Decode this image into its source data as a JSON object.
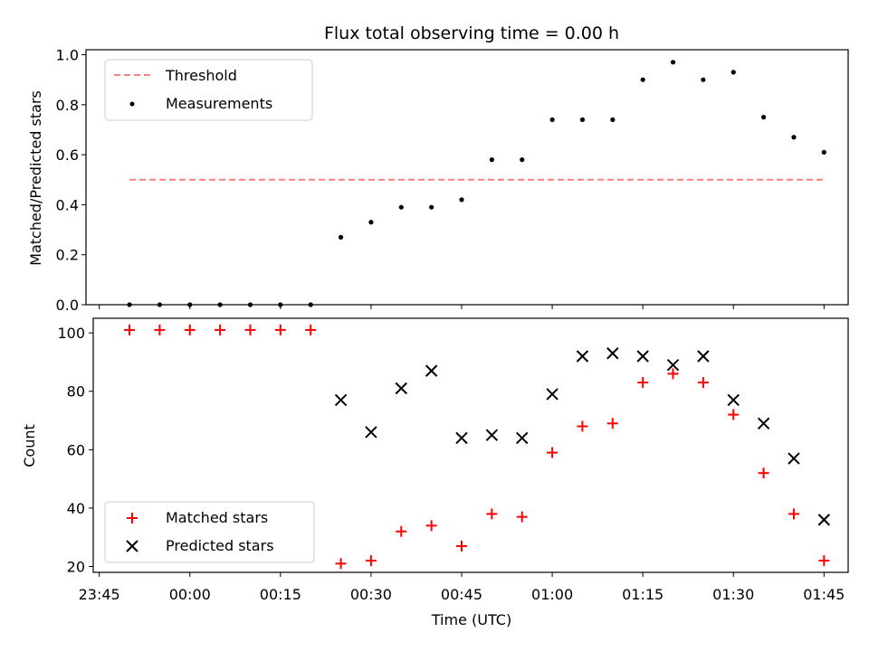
{
  "chart_data": [
    {
      "type": "scatter",
      "title": "Flux total observing time = 0.00 h",
      "xlabel": "",
      "ylabel": "Matched/Predicted stars",
      "ylim": [
        0,
        1.02
      ],
      "yticks": [
        "0.0",
        "0.2",
        "0.4",
        "0.6",
        "0.8",
        "1.0"
      ],
      "legend": "upper left",
      "grid": false,
      "x": [
        "23:50",
        "23:55",
        "00:00",
        "00:05",
        "00:10",
        "00:15",
        "00:20",
        "00:25",
        "00:30",
        "00:35",
        "00:40",
        "00:45",
        "00:50",
        "00:55",
        "01:00",
        "01:05",
        "01:10",
        "01:15",
        "01:20",
        "01:25",
        "01:30",
        "01:35",
        "01:40",
        "01:45"
      ],
      "threshold": {
        "name": "Threshold",
        "value": 0.5,
        "color": "#ff7f7f",
        "style": "dashed",
        "x_start": "23:50",
        "x_end": "01:45"
      },
      "series": [
        {
          "name": "Measurements",
          "color": "#000000",
          "marker": "dot",
          "values": [
            0,
            0,
            0,
            0,
            0,
            0,
            0,
            0.27,
            0.33,
            0.39,
            0.39,
            0.42,
            0.58,
            0.58,
            0.74,
            0.74,
            0.74,
            0.9,
            0.97,
            0.9,
            0.93,
            0.75,
            0.67,
            0.61
          ]
        }
      ]
    },
    {
      "type": "scatter",
      "title": "",
      "xlabel": "Time (UTC)",
      "ylabel": "Count",
      "ylim": [
        18,
        105
      ],
      "yticks": [
        "20",
        "40",
        "60",
        "80",
        "100"
      ],
      "xlim": [
        "23:44",
        "01:49"
      ],
      "xticks": [
        "23:45",
        "00:00",
        "00:15",
        "00:30",
        "00:45",
        "01:00",
        "01:15",
        "01:30",
        "01:45"
      ],
      "legend": "lower left",
      "grid": false,
      "x": [
        "23:50",
        "23:55",
        "00:00",
        "00:05",
        "00:10",
        "00:15",
        "00:20",
        "00:25",
        "00:30",
        "00:35",
        "00:40",
        "00:45",
        "00:50",
        "00:55",
        "01:00",
        "01:05",
        "01:10",
        "01:15",
        "01:20",
        "01:25",
        "01:30",
        "01:35",
        "01:40",
        "01:45"
      ],
      "series": [
        {
          "name": "Matched stars",
          "color": "#ff0000",
          "marker": "plus",
          "values": [
            101,
            101,
            101,
            101,
            101,
            101,
            101,
            21,
            22,
            32,
            34,
            27,
            38,
            37,
            59,
            68,
            69,
            83,
            86,
            83,
            72,
            52,
            38,
            22
          ]
        },
        {
          "name": "Predicted stars",
          "color": "#000000",
          "marker": "x",
          "values": [
            null,
            null,
            null,
            null,
            null,
            null,
            null,
            77,
            66,
            81,
            87,
            64,
            65,
            64,
            79,
            92,
            93,
            92,
            89,
            92,
            77,
            69,
            57,
            36
          ]
        }
      ]
    }
  ]
}
